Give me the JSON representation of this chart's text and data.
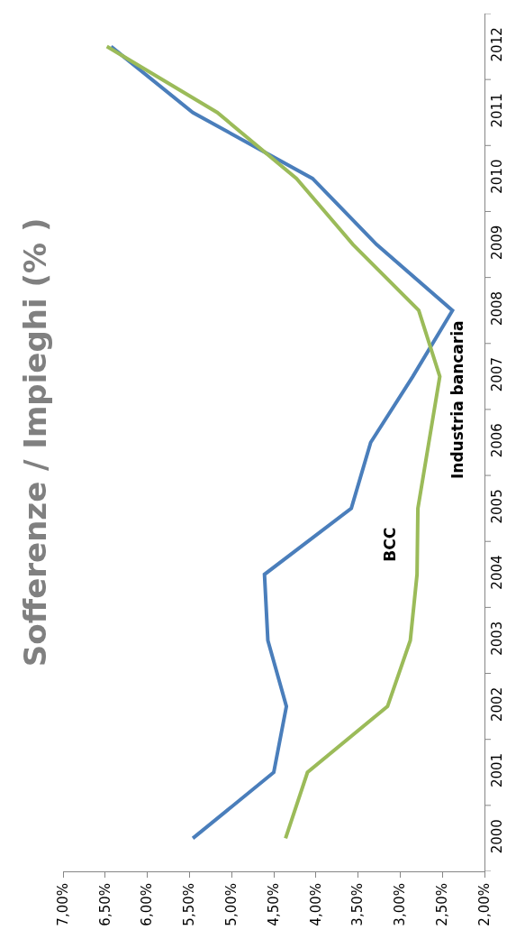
{
  "chart_data": {
    "type": "line",
    "title": "Sofferenze / Impieghi (% )",
    "orientation": "horizontal",
    "categories": [
      "2012",
      "2011",
      "2010",
      "2009",
      "2008",
      "2007",
      "2006",
      "2005",
      "2004",
      "2003",
      "2002",
      "2001",
      "2000"
    ],
    "series": [
      {
        "name": "Industria bancaria",
        "color": "#4a7ebb",
        "values": [
          6.43,
          5.46,
          4.04,
          3.28,
          2.38,
          2.85,
          3.35,
          3.58,
          4.61,
          4.57,
          4.35,
          4.5,
          5.46
        ]
      },
      {
        "name": "BCC",
        "color": "#9bbb59",
        "values": [
          6.48,
          5.17,
          4.23,
          3.56,
          2.78,
          2.53,
          2.66,
          2.79,
          2.8,
          2.88,
          3.15,
          4.1,
          4.36
        ]
      }
    ],
    "xlim": [
      7,
      2
    ],
    "xticks": [
      {
        "value": 7,
        "label": "7,00%"
      },
      {
        "value": 6.5,
        "label": "6,50%"
      },
      {
        "value": 6,
        "label": "6,00%"
      },
      {
        "value": 5.5,
        "label": "5,50%"
      },
      {
        "value": 5,
        "label": "5,00%"
      },
      {
        "value": 4.5,
        "label": "4,50%"
      },
      {
        "value": 4,
        "label": "4,00%"
      },
      {
        "value": 3.5,
        "label": "3,50%"
      },
      {
        "value": 3,
        "label": "3,00%"
      },
      {
        "value": 2.5,
        "label": "2,50%"
      },
      {
        "value": 2,
        "label": "2,00%"
      }
    ],
    "legend": false,
    "marker": "none",
    "line_style": "solid"
  }
}
